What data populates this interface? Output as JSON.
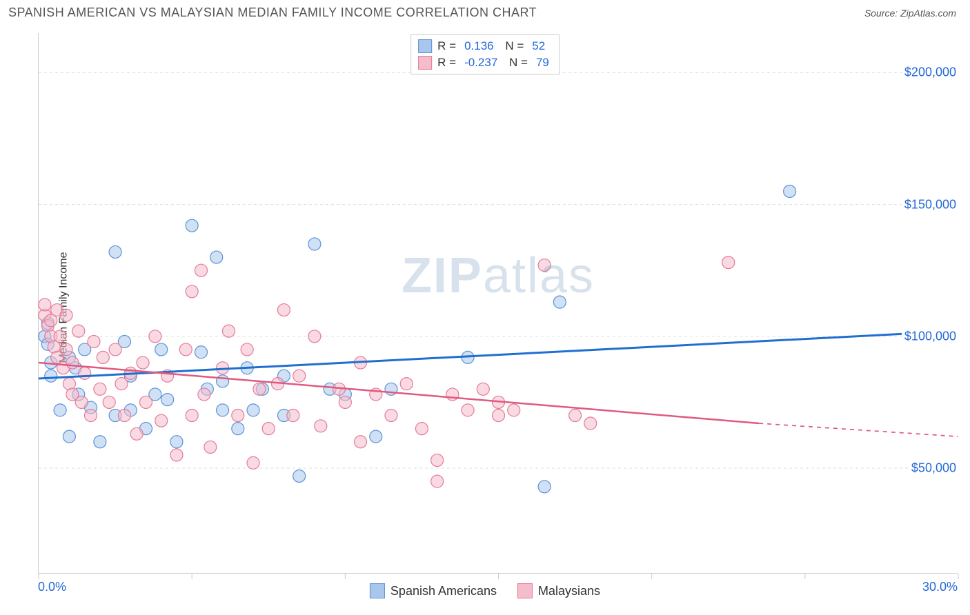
{
  "title": "SPANISH AMERICAN VS MALAYSIAN MEDIAN FAMILY INCOME CORRELATION CHART",
  "source_label": "Source: ZipAtlas.com",
  "watermark": {
    "part1": "ZIP",
    "part2": "atlas"
  },
  "y_axis": {
    "label": "Median Family Income"
  },
  "chart": {
    "type": "scatter",
    "xlim": [
      0,
      30
    ],
    "ylim": [
      10000,
      215000
    ],
    "x_tick_labels": [
      "0.0%",
      "30.0%"
    ],
    "x_tick_positions_major": [
      0,
      5,
      10,
      15,
      20,
      25,
      30
    ],
    "y_gridlines": [
      50000,
      100000,
      150000,
      200000
    ],
    "y_grid_labels": [
      "$50,000",
      "$100,000",
      "$150,000",
      "$200,000"
    ],
    "grid_color": "#dddddd",
    "background_color": "#ffffff",
    "marker_radius": 9,
    "marker_opacity": 0.55,
    "series": [
      {
        "name": "Spanish Americans",
        "color_fill": "#a9c7ec",
        "color_stroke": "#5b93d6",
        "R": "0.136",
        "N": "52",
        "trend": {
          "x1": 0,
          "y1": 84000,
          "x2": 30,
          "y2": 102000,
          "color": "#1f6fd0",
          "width": 3
        },
        "points": [
          [
            0.2,
            100000
          ],
          [
            0.3,
            105000
          ],
          [
            0.3,
            97000
          ],
          [
            0.4,
            90000
          ],
          [
            0.4,
            85000
          ],
          [
            0.7,
            72000
          ],
          [
            1.0,
            62000
          ],
          [
            1.2,
            88000
          ],
          [
            1.0,
            92000
          ],
          [
            1.3,
            78000
          ],
          [
            1.5,
            95000
          ],
          [
            1.7,
            73000
          ],
          [
            2.0,
            60000
          ],
          [
            2.5,
            132000
          ],
          [
            2.8,
            98000
          ],
          [
            2.5,
            70000
          ],
          [
            3.0,
            85000
          ],
          [
            3.0,
            72000
          ],
          [
            3.5,
            65000
          ],
          [
            3.8,
            78000
          ],
          [
            4.0,
            95000
          ],
          [
            4.2,
            76000
          ],
          [
            4.5,
            60000
          ],
          [
            5.0,
            142000
          ],
          [
            5.3,
            94000
          ],
          [
            5.5,
            80000
          ],
          [
            5.8,
            130000
          ],
          [
            6.0,
            72000
          ],
          [
            6.0,
            83000
          ],
          [
            6.5,
            65000
          ],
          [
            6.8,
            88000
          ],
          [
            7.0,
            72000
          ],
          [
            7.3,
            80000
          ],
          [
            8.0,
            70000
          ],
          [
            8.0,
            85000
          ],
          [
            8.5,
            47000
          ],
          [
            9.0,
            135000
          ],
          [
            9.5,
            80000
          ],
          [
            10.0,
            78000
          ],
          [
            11.0,
            62000
          ],
          [
            11.5,
            80000
          ],
          [
            14.0,
            92000
          ],
          [
            16.5,
            43000
          ],
          [
            17.0,
            113000
          ],
          [
            24.5,
            155000
          ]
        ]
      },
      {
        "name": "Malaysians",
        "color_fill": "#f5bccb",
        "color_stroke": "#e47a97",
        "R": "-0.237",
        "N": "79",
        "trend": {
          "x1": 0,
          "y1": 90000,
          "x2": 23.5,
          "y2": 67000,
          "color": "#e05a7e",
          "width": 2.5,
          "dash_extend_to": 30,
          "y_at_end": 62000
        },
        "points": [
          [
            0.2,
            108000
          ],
          [
            0.2,
            112000
          ],
          [
            0.3,
            104000
          ],
          [
            0.4,
            106000
          ],
          [
            0.4,
            100000
          ],
          [
            0.5,
            96000
          ],
          [
            0.6,
            110000
          ],
          [
            0.6,
            92000
          ],
          [
            0.7,
            100000
          ],
          [
            0.8,
            88000
          ],
          [
            0.9,
            95000
          ],
          [
            0.9,
            108000
          ],
          [
            1.0,
            82000
          ],
          [
            1.1,
            90000
          ],
          [
            1.1,
            78000
          ],
          [
            1.3,
            102000
          ],
          [
            1.4,
            75000
          ],
          [
            1.5,
            86000
          ],
          [
            1.7,
            70000
          ],
          [
            1.8,
            98000
          ],
          [
            2.0,
            80000
          ],
          [
            2.1,
            92000
          ],
          [
            2.3,
            75000
          ],
          [
            2.5,
            95000
          ],
          [
            2.7,
            82000
          ],
          [
            2.8,
            70000
          ],
          [
            3.0,
            86000
          ],
          [
            3.2,
            63000
          ],
          [
            3.4,
            90000
          ],
          [
            3.5,
            75000
          ],
          [
            3.8,
            100000
          ],
          [
            4.0,
            68000
          ],
          [
            4.2,
            85000
          ],
          [
            4.5,
            55000
          ],
          [
            4.8,
            95000
          ],
          [
            5.0,
            117000
          ],
          [
            5.0,
            70000
          ],
          [
            5.3,
            125000
          ],
          [
            5.4,
            78000
          ],
          [
            5.6,
            58000
          ],
          [
            6.0,
            88000
          ],
          [
            6.2,
            102000
          ],
          [
            6.5,
            70000
          ],
          [
            6.8,
            95000
          ],
          [
            7.0,
            52000
          ],
          [
            7.2,
            80000
          ],
          [
            7.5,
            65000
          ],
          [
            7.8,
            82000
          ],
          [
            8.0,
            110000
          ],
          [
            8.3,
            70000
          ],
          [
            8.5,
            85000
          ],
          [
            9.0,
            100000
          ],
          [
            9.2,
            66000
          ],
          [
            9.8,
            80000
          ],
          [
            10.0,
            75000
          ],
          [
            10.5,
            90000
          ],
          [
            10.5,
            60000
          ],
          [
            11.0,
            78000
          ],
          [
            11.5,
            70000
          ],
          [
            12.0,
            82000
          ],
          [
            12.5,
            65000
          ],
          [
            13.0,
            53000
          ],
          [
            13.0,
            45000
          ],
          [
            13.5,
            78000
          ],
          [
            14.0,
            72000
          ],
          [
            14.5,
            80000
          ],
          [
            15.0,
            70000
          ],
          [
            15.0,
            75000
          ],
          [
            15.5,
            72000
          ],
          [
            16.5,
            127000
          ],
          [
            17.5,
            70000
          ],
          [
            18.0,
            67000
          ],
          [
            22.5,
            128000
          ]
        ]
      }
    ]
  },
  "bottom_legend": [
    {
      "label": "Spanish Americans",
      "fill": "#a9c7ec",
      "stroke": "#5b93d6"
    },
    {
      "label": "Malaysians",
      "fill": "#f5bccb",
      "stroke": "#e47a97"
    }
  ]
}
